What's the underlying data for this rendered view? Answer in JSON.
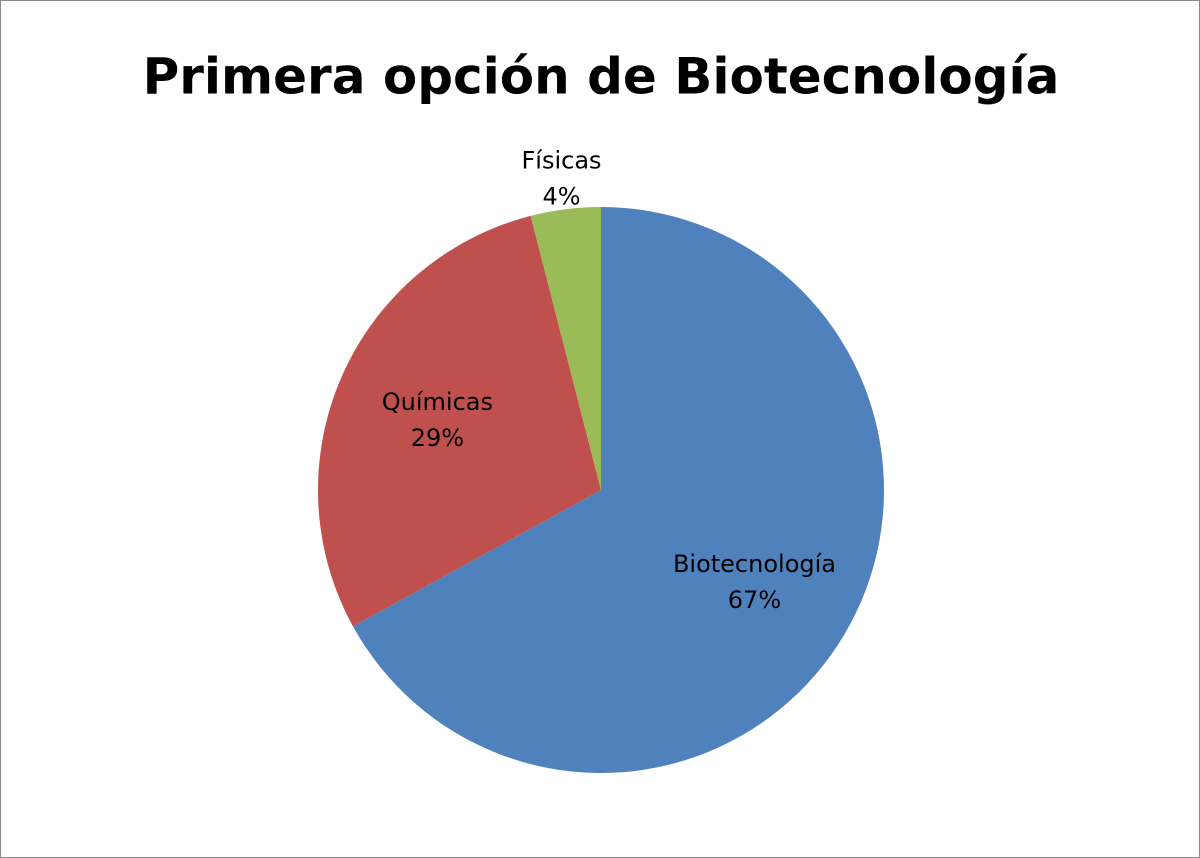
{
  "chart_data": {
    "type": "pie",
    "title": "Primera opción de Biotecnología",
    "categories": [
      "Biotecnología",
      "Químicas",
      "Físicas"
    ],
    "values": [
      67,
      29,
      4
    ],
    "value_labels": [
      "67%",
      "29%",
      "4%"
    ],
    "colors": [
      "#4f81bd",
      "#c0504d",
      "#9bbb59"
    ]
  }
}
